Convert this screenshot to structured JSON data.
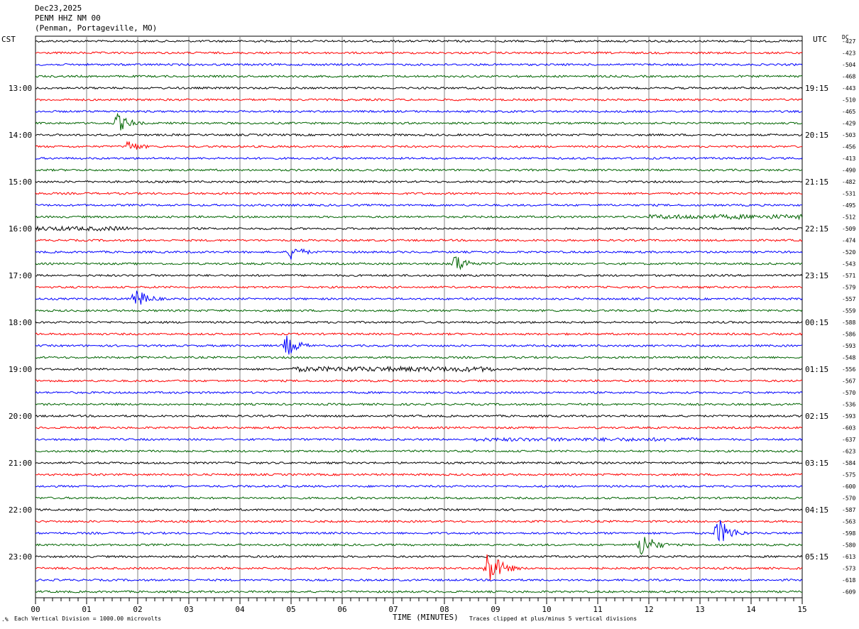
{
  "header": {
    "date": "Dec23,2025",
    "station": "PENM HHZ NM 00",
    "location": "(Penman, Portageville, MO)"
  },
  "left_axis_label": "CST",
  "right_axis_label": "UTC",
  "dc_label": "DC",
  "footer": {
    "scale_note": "Each Vertical Division = 1000.00 microvolts",
    "xlabel": "TIME (MINUTES)",
    "clip_note": "Traces clipped at plus/minus 5 vertical divisions"
  },
  "colors": {
    "trace_cycle": [
      "#000000",
      "#ff0000",
      "#0000ff",
      "#006400"
    ],
    "grid": "#808080"
  },
  "chart_data": {
    "type": "line",
    "xlabel": "TIME (MINUTES)",
    "xlim": [
      0,
      15
    ],
    "x_ticks": [
      "00",
      "01",
      "02",
      "03",
      "04",
      "05",
      "06",
      "07",
      "08",
      "09",
      "10",
      "11",
      "12",
      "13",
      "14",
      "15"
    ],
    "left_time_labels": [
      "13:00",
      "14:00",
      "15:00",
      "16:00",
      "17:00",
      "18:00",
      "19:00",
      "20:00",
      "21:00",
      "22:00",
      "23:00"
    ],
    "right_time_labels": [
      "19:15",
      "20:15",
      "21:15",
      "22:15",
      "23:15",
      "00:15",
      "01:15",
      "02:15",
      "03:15",
      "04:15",
      "05:15"
    ],
    "dc_offsets": [
      -427,
      -423,
      -504,
      -468,
      -443,
      -510,
      -465,
      -429,
      -503,
      -456,
      -413,
      -490,
      -482,
      -531,
      -495,
      -512,
      -509,
      -474,
      -520,
      -543,
      -571,
      -579,
      -557,
      -559,
      -588,
      -586,
      -593,
      -548,
      -556,
      -567,
      -570,
      -536,
      -593,
      -603,
      -637,
      -623,
      -584,
      -575,
      -600,
      -570,
      -587,
      -563,
      -598,
      -580,
      -613,
      -573,
      -618,
      -609
    ],
    "events": [
      {
        "trace": 7,
        "minute": 1.55,
        "amp": 14
      },
      {
        "trace": 9,
        "minute": 1.75,
        "amp": 10
      },
      {
        "trace": 18,
        "minute": 4.95,
        "amp": 11
      },
      {
        "trace": 19,
        "minute": 8.15,
        "amp": 15
      },
      {
        "trace": 22,
        "minute": 1.9,
        "amp": 16
      },
      {
        "trace": 26,
        "minute": 4.85,
        "amp": 16
      },
      {
        "trace": 42,
        "minute": 13.3,
        "amp": 22
      },
      {
        "trace": 43,
        "minute": 11.8,
        "amp": 20
      },
      {
        "trace": 45,
        "minute": 8.8,
        "amp": 28
      }
    ]
  }
}
